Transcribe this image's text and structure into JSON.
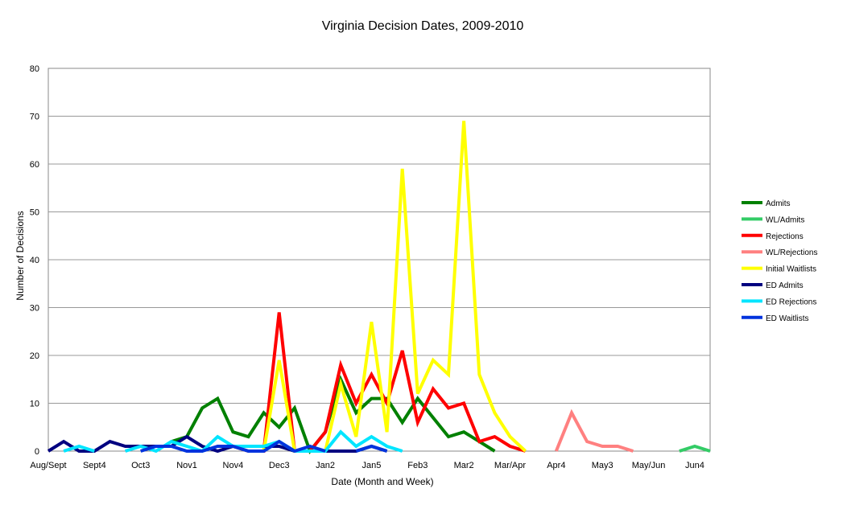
{
  "chart_data": {
    "type": "line",
    "title": "Virginia Decision Dates, 2009-2010",
    "xlabel": "Date (Month and Week)",
    "ylabel": "Number of Decisions",
    "ylim": [
      0,
      80
    ],
    "yticks": [
      0,
      10,
      20,
      30,
      40,
      50,
      60,
      70,
      80
    ],
    "x_count": 44,
    "tick_labels": [
      {
        "index": 0,
        "label": "Aug/Sept"
      },
      {
        "index": 3,
        "label": "Sept4"
      },
      {
        "index": 6,
        "label": "Oct3"
      },
      {
        "index": 9,
        "label": "Nov1"
      },
      {
        "index": 12,
        "label": "Nov4"
      },
      {
        "index": 15,
        "label": "Dec3"
      },
      {
        "index": 18,
        "label": "Jan2"
      },
      {
        "index": 21,
        "label": "Jan5"
      },
      {
        "index": 24,
        "label": "Feb3"
      },
      {
        "index": 27,
        "label": "Mar2"
      },
      {
        "index": 30,
        "label": "Mar/Apr"
      },
      {
        "index": 33,
        "label": "Apr4"
      },
      {
        "index": 36,
        "label": "May3"
      },
      {
        "index": 39,
        "label": "May/Jun"
      },
      {
        "index": 42,
        "label": "Jun4"
      }
    ],
    "grid": true,
    "legend_position": "right",
    "series": [
      {
        "name": "Admits",
        "color": "#008000",
        "start": 8,
        "values": [
          2,
          3,
          9,
          11,
          4,
          3,
          8,
          5,
          9,
          0,
          4,
          15,
          8,
          11,
          11,
          6,
          11,
          7,
          3,
          4,
          2,
          0
        ]
      },
      {
        "name": "WL/Admits",
        "color": "#33cc66",
        "start": 41,
        "values": [
          0,
          1,
          0
        ]
      },
      {
        "name": "Rejections",
        "color": "#ff0000",
        "start": 12,
        "values": [
          1,
          0,
          0,
          29,
          0,
          0,
          4,
          18,
          10,
          16,
          10,
          21,
          6,
          13,
          9,
          10,
          2,
          3,
          1,
          0
        ]
      },
      {
        "name": "WL/Rejections",
        "color": "#ff8080",
        "start": 33,
        "values": [
          0,
          8,
          2,
          1,
          1,
          0
        ]
      },
      {
        "name": "Initial Waitlists",
        "color": "#ffff00",
        "start": 14,
        "values": [
          0,
          19,
          0,
          0,
          0,
          14,
          3,
          27,
          4,
          59,
          12,
          19,
          16,
          69,
          16,
          8,
          3,
          0
        ]
      },
      {
        "name": "ED Admits",
        "color": "#000080",
        "start": 0,
        "values": [
          0,
          2,
          0,
          0,
          2,
          1,
          1,
          1,
          1,
          3,
          1,
          0,
          1,
          1,
          1,
          1,
          0,
          0,
          0,
          0,
          0,
          1,
          0
        ]
      },
      {
        "name": "ED Rejections",
        "color": "#00e5ff",
        "start": 1,
        "values": [
          0,
          1,
          0,
          null,
          0,
          1,
          0,
          2,
          1,
          0,
          3,
          1,
          1,
          1,
          2,
          0,
          0,
          0,
          4,
          1,
          3,
          1,
          0
        ]
      },
      {
        "name": "ED Waitlists",
        "color": "#0033dd",
        "start": 6,
        "values": [
          0,
          1,
          1,
          0,
          0,
          1,
          1,
          0,
          0,
          2,
          0,
          1,
          0,
          null,
          0,
          1,
          0
        ]
      }
    ]
  }
}
